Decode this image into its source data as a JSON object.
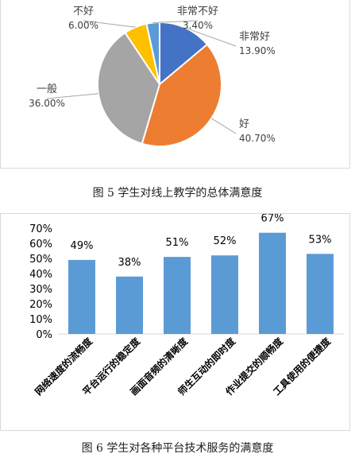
{
  "figures": [
    {
      "caption": "图 5  学生对线上教学的总体满意度"
    },
    {
      "caption": "图 6    学生对各种平台技术服务的满意度"
    }
  ],
  "chart_data": [
    {
      "type": "pie",
      "title": "",
      "labels": [
        "非常好",
        "好",
        "一般",
        "不好",
        "非常不好"
      ],
      "values": [
        13.9,
        40.7,
        36.0,
        6.0,
        3.4
      ],
      "value_labels": [
        "13.90%",
        "40.70%",
        "36.00%",
        "6.00%",
        "3.40%"
      ],
      "colors": [
        "#4472c4",
        "#ed7d31",
        "#a5a5a5",
        "#ffc000",
        "#5b9bd5"
      ]
    },
    {
      "type": "bar",
      "title": "",
      "categories": [
        "网络速度的流畅度",
        "平台运行的稳定度",
        "画面音频的清晰度",
        "师生互动的即时度",
        "作业提交的顺畅度",
        "工具使用的便捷度"
      ],
      "values": [
        49,
        38,
        51,
        52,
        67,
        53
      ],
      "value_labels": [
        "49%",
        "38%",
        "51%",
        "52%",
        "67%",
        "53%"
      ],
      "ylim": [
        0,
        70
      ],
      "yticks": [
        "0%",
        "10%",
        "20%",
        "30%",
        "40%",
        "50%",
        "60%",
        "70%"
      ],
      "grid": false,
      "color": "#5b9bd5"
    }
  ]
}
